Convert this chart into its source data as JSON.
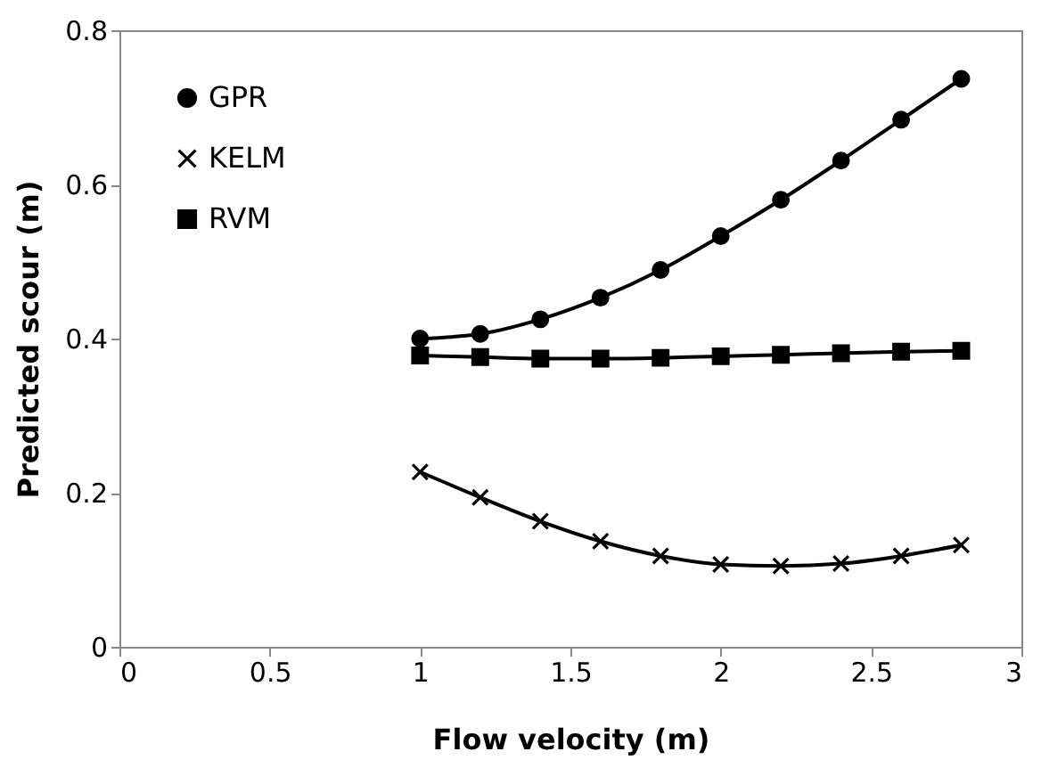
{
  "chart_data": {
    "type": "line",
    "xlabel": "Flow velocity (m)",
    "ylabel": "Predicted scour (m)",
    "x": [
      1,
      1.2,
      1.4,
      1.6,
      1.8,
      2,
      2.2,
      2.4,
      2.6,
      2.8
    ],
    "series": [
      {
        "name": "GPR",
        "color": "#000000",
        "marker": "circle",
        "values": [
          0.4,
          0.406,
          0.425,
          0.453,
          0.489,
          0.533,
          0.58,
          0.631,
          0.684,
          0.737
        ]
      },
      {
        "name": "KELM",
        "color": "#000000",
        "marker": "cross",
        "values": [
          0.227,
          0.194,
          0.163,
          0.137,
          0.118,
          0.107,
          0.105,
          0.108,
          0.118,
          0.132
        ]
      },
      {
        "name": "RVM",
        "color": "#000000",
        "marker": "square",
        "values": [
          0.378,
          0.376,
          0.374,
          0.374,
          0.375,
          0.377,
          0.379,
          0.381,
          0.383,
          0.384
        ]
      }
    ],
    "xlim": [
      0,
      3
    ],
    "xticks": [
      0,
      0.5,
      1,
      1.5,
      2,
      2.5,
      3
    ],
    "ylim": [
      0,
      0.8
    ],
    "yticks": [
      0,
      0.2,
      0.4,
      0.6,
      0.8
    ],
    "grid": false,
    "legend": "top left",
    "line_style": "solid"
  }
}
